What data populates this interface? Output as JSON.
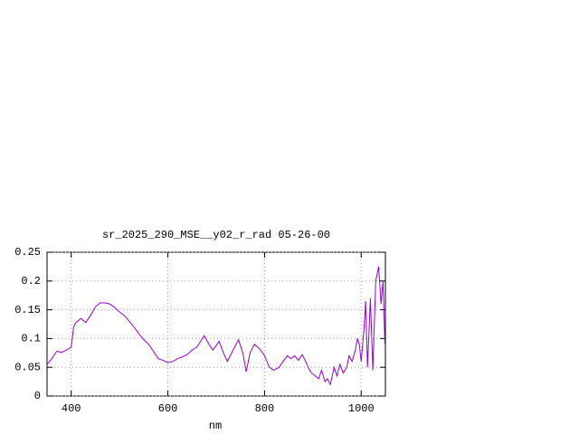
{
  "chart_data": {
    "type": "line",
    "title": "sr_2025_290_MSE__y02_r_rad 05-26-00",
    "x_label": "nm",
    "x": [
      350,
      360,
      370,
      380,
      390,
      400,
      405,
      410,
      420,
      430,
      440,
      450,
      460,
      470,
      480,
      490,
      500,
      510,
      520,
      530,
      540,
      550,
      560,
      570,
      580,
      590,
      600,
      610,
      620,
      630,
      640,
      650,
      660,
      670,
      675,
      685,
      693,
      700,
      706,
      715,
      723,
      735,
      746,
      755,
      762,
      770,
      779,
      790,
      800,
      810,
      819,
      830,
      840,
      847,
      855,
      862,
      870,
      878,
      885,
      890,
      897,
      905,
      912,
      918,
      925,
      930,
      936,
      944,
      950,
      956,
      963,
      970,
      975,
      981,
      988,
      992,
      996,
      1000,
      1006,
      1009,
      1013,
      1019,
      1024,
      1030,
      1036,
      1041,
      1045,
      1049
    ],
    "series": [
      {
        "name": "sr_2025_290_MSE__y02_r_rad",
        "color": "#9400d3",
        "values": [
          0.055,
          0.065,
          0.078,
          0.076,
          0.08,
          0.085,
          0.12,
          0.128,
          0.135,
          0.128,
          0.14,
          0.155,
          0.162,
          0.162,
          0.16,
          0.154,
          0.146,
          0.14,
          0.13,
          0.12,
          0.108,
          0.098,
          0.09,
          0.078,
          0.065,
          0.062,
          0.058,
          0.06,
          0.065,
          0.068,
          0.072,
          0.08,
          0.085,
          0.098,
          0.105,
          0.09,
          0.08,
          0.088,
          0.095,
          0.075,
          0.06,
          0.08,
          0.098,
          0.075,
          0.042,
          0.075,
          0.09,
          0.082,
          0.07,
          0.05,
          0.045,
          0.05,
          0.062,
          0.07,
          0.065,
          0.07,
          0.062,
          0.072,
          0.06,
          0.05,
          0.04,
          0.035,
          0.03,
          0.045,
          0.025,
          0.03,
          0.02,
          0.05,
          0.035,
          0.055,
          0.04,
          0.05,
          0.07,
          0.06,
          0.08,
          0.1,
          0.09,
          0.06,
          0.12,
          0.165,
          0.05,
          0.17,
          0.045,
          0.2,
          0.225,
          0.16,
          0.2,
          0.09
        ]
      }
    ],
    "xlim": [
      350,
      1050
    ],
    "xticks": [
      400,
      600,
      800,
      1000
    ],
    "ylim": [
      0,
      0.25
    ],
    "yticks": [
      0,
      0.05,
      0.1,
      0.15,
      0.2,
      0.25
    ],
    "grid": true
  }
}
